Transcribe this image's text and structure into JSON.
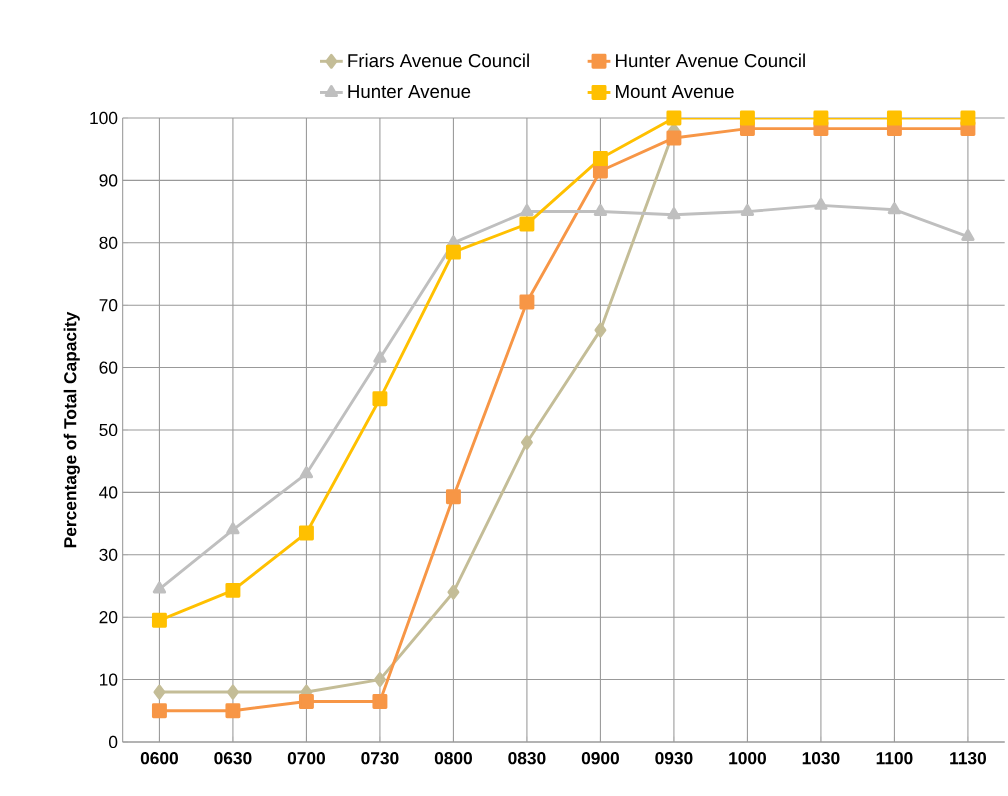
{
  "chart_data": {
    "type": "line",
    "ylabel": "Percentage of Total Capacity",
    "categories": [
      "0600",
      "0630",
      "0700",
      "0730",
      "0800",
      "0830",
      "0900",
      "0930",
      "1000",
      "1030",
      "1100",
      "1130"
    ],
    "series": [
      {
        "name": "Friars Avenue Council",
        "color": "#c4bd97",
        "marker": "diamond",
        "values": [
          8,
          8,
          8,
          10,
          24,
          48,
          66,
          98,
          null,
          null,
          null,
          null
        ]
      },
      {
        "name": "Hunter Avenue Council",
        "color": "#f79646",
        "marker": "square",
        "values": [
          5,
          5,
          6.5,
          6.5,
          39.3,
          70.5,
          91.5,
          96.8,
          98.3,
          98.3,
          98.3,
          98.3
        ]
      },
      {
        "name": "Hunter Avenue",
        "color": "#bfbfbf",
        "marker": "triangle",
        "values": [
          24.5,
          34,
          43,
          61.5,
          80,
          85,
          85,
          84.5,
          85,
          86,
          85.3,
          81
        ]
      },
      {
        "name": "Mount Avenue",
        "color": "#ffc000",
        "marker": "square",
        "values": [
          19.5,
          24.3,
          33.5,
          55,
          78.5,
          83,
          93.5,
          100,
          100,
          100,
          100,
          100
        ]
      }
    ],
    "ylim": [
      0,
      100
    ],
    "yticks": [
      0,
      10,
      20,
      30,
      40,
      50,
      60,
      70,
      80,
      90,
      100
    ],
    "grid": true,
    "legend": "top",
    "line_style": "solid"
  }
}
